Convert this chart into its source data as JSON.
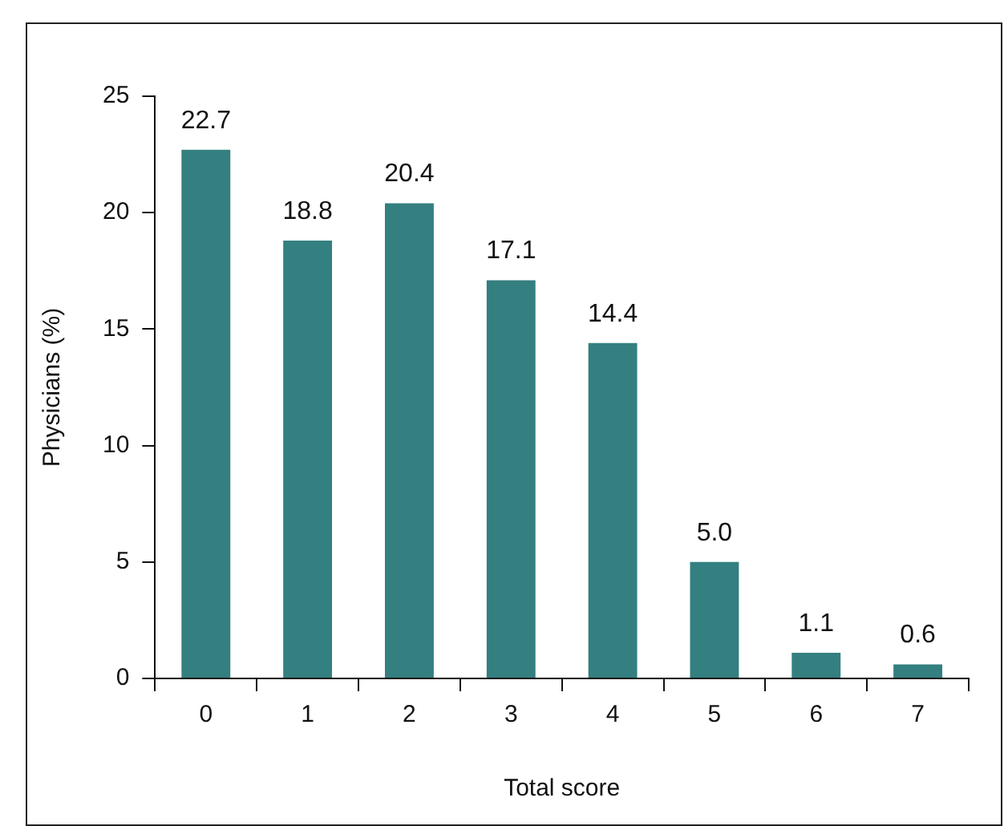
{
  "chart_data": {
    "type": "bar",
    "xlabel": "Total score",
    "ylabel": "Physicians (%)",
    "categories": [
      "0",
      "1",
      "2",
      "3",
      "4",
      "5",
      "6",
      "7"
    ],
    "values": [
      22.7,
      18.8,
      20.4,
      17.1,
      14.4,
      5.0,
      1.1,
      0.6
    ],
    "value_labels": [
      "22.7",
      "18.8",
      "20.4",
      "17.1",
      "14.4",
      "5.0",
      "1.1",
      "0.6"
    ],
    "color": "#347f80",
    "ylim": [
      0,
      25
    ],
    "yticks": [
      0,
      5,
      10,
      15,
      20,
      25
    ],
    "grid": false,
    "legend": false
  }
}
